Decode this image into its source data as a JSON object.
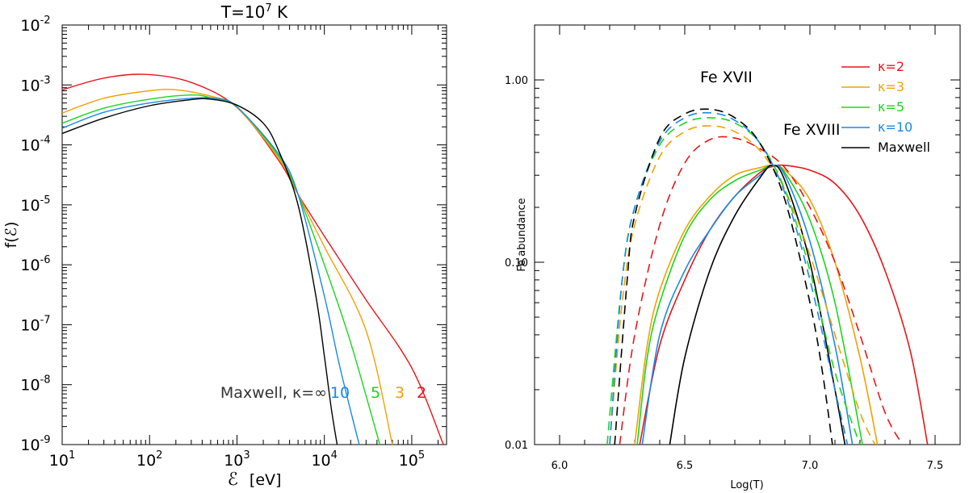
{
  "colors": {
    "k2": "#e8161c",
    "k3": "#f2a102",
    "k5": "#18d81c",
    "k10": "#1889e8",
    "maxwell": "#000000"
  },
  "left": {
    "title_base": "T=10",
    "title_exp": "7",
    "title_unit": " K",
    "ylabel": "f(ℰ)",
    "xlabel_sym": "ℰ",
    "xlabel_unit": "[eV]",
    "x_ticks": [
      {
        "b": "10",
        "e": "1"
      },
      {
        "b": "10",
        "e": "2"
      },
      {
        "b": "10",
        "e": "3"
      },
      {
        "b": "10",
        "e": "4"
      },
      {
        "b": "10",
        "e": "5"
      }
    ],
    "y_ticks": [
      {
        "b": "10",
        "e": "-9"
      },
      {
        "b": "10",
        "e": "-8"
      },
      {
        "b": "10",
        "e": "-7"
      },
      {
        "b": "10",
        "e": "-6"
      },
      {
        "b": "10",
        "e": "-5"
      },
      {
        "b": "10",
        "e": "-4"
      },
      {
        "b": "10",
        "e": "-3"
      },
      {
        "b": "10",
        "e": "-2"
      }
    ],
    "annotation": {
      "maxwell": "Maxwell, κ=∞",
      "k10": "10",
      "k5": "5",
      "k3": "3",
      "k2": "2"
    }
  },
  "right": {
    "ylabel": "Fe abundance",
    "xlabel": "Log(T)",
    "x_ticks": [
      "6.0",
      "6.5",
      "7.0",
      "7.5"
    ],
    "y_ticks": [
      "0.01",
      "0.10",
      "1.00"
    ],
    "ion17": "Fe XVII",
    "ion18": "Fe XVIII",
    "legend": [
      {
        "label": "κ=2",
        "key": "k2"
      },
      {
        "label": "κ=3",
        "key": "k3"
      },
      {
        "label": "κ=5",
        "key": "k5"
      },
      {
        "label": "κ=10",
        "key": "k10"
      },
      {
        "label": "Maxwell",
        "key": "maxwell"
      }
    ]
  },
  "chart_data": [
    {
      "type": "line",
      "title": "T=10^7 K",
      "xlabel": "ℰ [eV]",
      "ylabel": "f(ℰ)",
      "xscale": "log",
      "yscale": "log",
      "xlim": [
        10,
        250000
      ],
      "ylim": [
        1e-09,
        0.01
      ],
      "series": [
        {
          "name": "2",
          "x": [
            10,
            30,
            90,
            300,
            1000,
            3000,
            5000,
            10000,
            30000,
            100000,
            230000
          ],
          "y": [
            0.00083,
            0.0013,
            0.0015,
            0.0011,
            0.00042,
            5.5e-05,
            1.5e-05,
            3e-06,
            2.6e-07,
            1.9e-08,
            1e-09
          ]
        },
        {
          "name": "3",
          "x": [
            10,
            30,
            100,
            200,
            500,
            1000,
            3000,
            5000,
            10000,
            30000,
            60000
          ],
          "y": [
            0.00034,
            0.0006,
            0.0008,
            0.00083,
            0.00065,
            0.00042,
            6e-05,
            1.5e-05,
            2e-06,
            8e-08,
            1e-09
          ]
        },
        {
          "name": "5",
          "x": [
            10,
            30,
            100,
            300,
            500,
            1000,
            3000,
            5000,
            10000,
            20000,
            43000
          ],
          "y": [
            0.00023,
            0.00041,
            0.00058,
            0.00068,
            0.00061,
            0.00043,
            6.5e-05,
            1.5e-05,
            1e-06,
            5e-08,
            1e-09
          ]
        },
        {
          "name": "10",
          "x": [
            10,
            30,
            100,
            300,
            600,
            1000,
            3000,
            5000,
            10000,
            15000,
            25000
          ],
          "y": [
            0.00019,
            0.00035,
            0.0005,
            0.0006,
            0.00059,
            0.00043,
            7e-05,
            1.5e-05,
            3e-07,
            2e-08,
            1e-09
          ]
        },
        {
          "name": "Maxwell, κ=∞",
          "x": [
            10,
            30,
            100,
            300,
            500,
            1000,
            2000,
            3000,
            5000,
            8000,
            10000,
            12000,
            14000
          ],
          "y": [
            0.000155,
            0.00028,
            0.00045,
            0.00057,
            0.00058,
            0.00046,
            0.00023,
            8e-05,
            1e-05,
            3e-07,
            3e-08,
            4e-09,
            1e-09
          ]
        }
      ]
    },
    {
      "type": "line",
      "xlabel": "Log(T)",
      "ylabel": "Fe abundance",
      "yscale": "log",
      "xlim": [
        5.9,
        7.6
      ],
      "ylim": [
        0.01,
        2.0
      ],
      "legend_position": "top-right",
      "series": [
        {
          "name": "κ=2",
          "ion": "Fe XVIII",
          "x": [
            6.32,
            6.4,
            6.5,
            6.6,
            6.7,
            6.8,
            6.85,
            6.9,
            7.0,
            7.1,
            7.2,
            7.3,
            7.4,
            7.47
          ],
          "y": [
            0.01,
            0.035,
            0.08,
            0.15,
            0.23,
            0.31,
            0.335,
            0.34,
            0.32,
            0.27,
            0.18,
            0.09,
            0.033,
            0.01
          ]
        },
        {
          "name": "κ=3",
          "ion": "Fe XVIII",
          "x": [
            6.3,
            6.35,
            6.4,
            6.5,
            6.6,
            6.7,
            6.8,
            6.85,
            6.9,
            7.0,
            7.1,
            7.2,
            7.27
          ],
          "y": [
            0.01,
            0.035,
            0.07,
            0.15,
            0.23,
            0.3,
            0.33,
            0.34,
            0.32,
            0.22,
            0.1,
            0.03,
            0.01
          ]
        },
        {
          "name": "κ=5",
          "ion": "Fe XVIII",
          "x": [
            6.31,
            6.35,
            6.4,
            6.5,
            6.6,
            6.7,
            6.8,
            6.85,
            6.9,
            7.0,
            7.1,
            7.21
          ],
          "y": [
            0.01,
            0.03,
            0.06,
            0.14,
            0.22,
            0.28,
            0.32,
            0.34,
            0.31,
            0.17,
            0.06,
            0.01
          ]
        },
        {
          "name": "κ=10",
          "ion": "Fe XVIII",
          "x": [
            6.33,
            6.4,
            6.5,
            6.6,
            6.7,
            6.8,
            6.85,
            6.9,
            7.0,
            7.1,
            7.17
          ],
          "y": [
            0.01,
            0.04,
            0.09,
            0.15,
            0.23,
            0.3,
            0.34,
            0.3,
            0.13,
            0.035,
            0.01
          ]
        },
        {
          "name": "Maxwell",
          "ion": "Fe XVIII",
          "x": [
            6.44,
            6.5,
            6.6,
            6.7,
            6.8,
            6.85,
            6.9,
            7.0,
            7.1,
            7.14
          ],
          "y": [
            0.01,
            0.03,
            0.09,
            0.18,
            0.29,
            0.34,
            0.28,
            0.1,
            0.02,
            0.01
          ]
        },
        {
          "name": "κ=2",
          "ion": "Fe XVII",
          "x": [
            6.24,
            6.3,
            6.4,
            6.5,
            6.6,
            6.7,
            6.8,
            6.9,
            7.0,
            7.1,
            7.2,
            7.3,
            7.37
          ],
          "y": [
            0.01,
            0.04,
            0.16,
            0.35,
            0.47,
            0.48,
            0.42,
            0.33,
            0.2,
            0.1,
            0.04,
            0.015,
            0.01
          ]
        },
        {
          "name": "κ=3",
          "ion": "Fe XVII",
          "x": [
            6.2,
            6.25,
            6.3,
            6.4,
            6.5,
            6.6,
            6.7,
            6.8,
            6.9,
            7.0,
            7.1,
            7.2,
            7.26
          ],
          "y": [
            0.01,
            0.06,
            0.16,
            0.38,
            0.52,
            0.56,
            0.52,
            0.41,
            0.25,
            0.11,
            0.04,
            0.015,
            0.01
          ]
        },
        {
          "name": "κ=5",
          "ion": "Fe XVII",
          "x": [
            6.19,
            6.25,
            6.3,
            6.4,
            6.5,
            6.6,
            6.7,
            6.8,
            6.9,
            7.0,
            7.1,
            7.2
          ],
          "y": [
            0.01,
            0.08,
            0.2,
            0.44,
            0.58,
            0.62,
            0.58,
            0.45,
            0.25,
            0.09,
            0.025,
            0.01
          ]
        },
        {
          "name": "κ=10",
          "ion": "Fe XVII",
          "x": [
            6.2,
            6.25,
            6.3,
            6.4,
            6.5,
            6.6,
            6.7,
            6.8,
            6.9,
            7.0,
            7.1,
            7.15
          ],
          "y": [
            0.01,
            0.08,
            0.2,
            0.46,
            0.62,
            0.66,
            0.6,
            0.45,
            0.24,
            0.08,
            0.02,
            0.01
          ]
        },
        {
          "name": "Maxwell",
          "ion": "Fe XVII",
          "x": [
            6.22,
            6.27,
            6.3,
            6.4,
            6.5,
            6.6,
            6.7,
            6.8,
            6.9,
            7.0,
            7.05,
            7.09
          ],
          "y": [
            0.01,
            0.08,
            0.18,
            0.48,
            0.65,
            0.69,
            0.62,
            0.45,
            0.22,
            0.06,
            0.025,
            0.01
          ]
        }
      ]
    }
  ]
}
